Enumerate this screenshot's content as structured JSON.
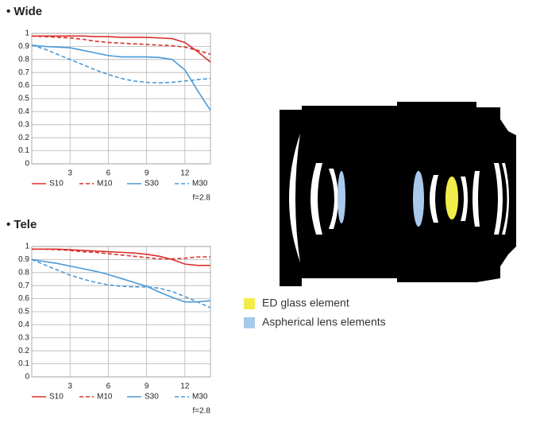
{
  "chart_data": [
    {
      "type": "line",
      "title": "• Wide",
      "annotation": "f=2.8",
      "x": [
        0,
        1,
        2,
        3,
        4,
        5,
        6,
        7,
        8,
        9,
        10,
        11,
        12,
        13,
        14
      ],
      "xlim": [
        0,
        14
      ],
      "xticks": [
        3,
        6,
        9,
        12
      ],
      "ylim": [
        0,
        1
      ],
      "yticks": [
        0,
        0.1,
        0.2,
        0.3,
        0.4,
        0.5,
        0.6,
        0.7,
        0.8,
        0.9,
        1
      ],
      "grid": true,
      "series": [
        {
          "name": "S10",
          "color": "#d9302b",
          "style": "solid",
          "values": [
            0.98,
            0.98,
            0.98,
            0.98,
            0.98,
            0.975,
            0.975,
            0.97,
            0.97,
            0.97,
            0.965,
            0.96,
            0.93,
            0.86,
            0.78
          ]
        },
        {
          "name": "M10",
          "color": "#d9302b",
          "style": "dashed",
          "values": [
            0.98,
            0.975,
            0.97,
            0.965,
            0.955,
            0.94,
            0.93,
            0.925,
            0.92,
            0.915,
            0.91,
            0.905,
            0.895,
            0.87,
            0.84
          ]
        },
        {
          "name": "S30",
          "color": "#4a9ad8",
          "style": "solid",
          "values": [
            0.91,
            0.9,
            0.895,
            0.89,
            0.87,
            0.85,
            0.83,
            0.82,
            0.82,
            0.82,
            0.815,
            0.8,
            0.72,
            0.56,
            0.41
          ]
        },
        {
          "name": "M30",
          "color": "#4a9ad8",
          "style": "dashed",
          "values": [
            0.91,
            0.88,
            0.84,
            0.8,
            0.76,
            0.72,
            0.685,
            0.655,
            0.635,
            0.625,
            0.62,
            0.625,
            0.635,
            0.645,
            0.655
          ]
        }
      ]
    },
    {
      "type": "line",
      "title": "• Tele",
      "annotation": "f=2.8",
      "x": [
        0,
        1,
        2,
        3,
        4,
        5,
        6,
        7,
        8,
        9,
        10,
        11,
        12,
        13,
        14
      ],
      "xlim": [
        0,
        14
      ],
      "xticks": [
        3,
        6,
        9,
        12
      ],
      "ylim": [
        0,
        1
      ],
      "yticks": [
        0,
        0.1,
        0.2,
        0.3,
        0.4,
        0.5,
        0.6,
        0.7,
        0.8,
        0.9,
        1
      ],
      "grid": true,
      "series": [
        {
          "name": "S10",
          "color": "#d9302b",
          "style": "solid",
          "values": [
            0.98,
            0.98,
            0.98,
            0.975,
            0.97,
            0.965,
            0.96,
            0.955,
            0.95,
            0.94,
            0.925,
            0.9,
            0.865,
            0.855,
            0.855
          ]
        },
        {
          "name": "M10",
          "color": "#d9302b",
          "style": "dashed",
          "values": [
            0.98,
            0.98,
            0.975,
            0.97,
            0.96,
            0.955,
            0.945,
            0.935,
            0.925,
            0.915,
            0.905,
            0.905,
            0.91,
            0.92,
            0.92
          ]
        },
        {
          "name": "S30",
          "color": "#4a9ad8",
          "style": "solid",
          "values": [
            0.9,
            0.885,
            0.87,
            0.85,
            0.83,
            0.81,
            0.785,
            0.755,
            0.725,
            0.695,
            0.65,
            0.61,
            0.575,
            0.575,
            0.585
          ]
        },
        {
          "name": "M30",
          "color": "#4a9ad8",
          "style": "dashed",
          "values": [
            0.9,
            0.86,
            0.82,
            0.78,
            0.75,
            0.725,
            0.705,
            0.695,
            0.69,
            0.69,
            0.68,
            0.655,
            0.615,
            0.575,
            0.53
          ]
        }
      ]
    }
  ],
  "lens_legend": [
    {
      "label": "ED glass element",
      "color": "#f2ec4a"
    },
    {
      "label": "Aspherical lens elements",
      "color": "#a9c9ec"
    }
  ]
}
